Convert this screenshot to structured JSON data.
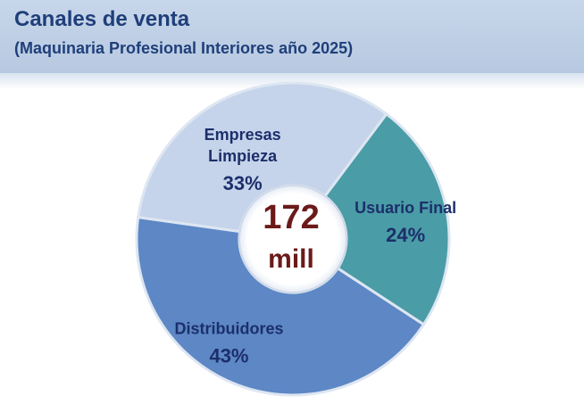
{
  "header": {
    "title": "Canales de venta",
    "subtitle": "(Maquinaria Profesional Interiores año 2025)"
  },
  "chart_data": {
    "type": "pie",
    "variant": "donut",
    "center_label": {
      "line1": "172",
      "line2": "mill"
    },
    "slices": [
      {
        "label": [
          "Empresas",
          "Limpieza"
        ],
        "value": 33,
        "value_label": "33%",
        "color": "#c5d4ea"
      },
      {
        "label": [
          "Usuario Final"
        ],
        "value": 24,
        "value_label": "24%",
        "color": "#4a9ca6"
      },
      {
        "label": [
          "Distribuidores"
        ],
        "value": 43,
        "value_label": "43%",
        "color": "#5d87c5"
      }
    ]
  }
}
